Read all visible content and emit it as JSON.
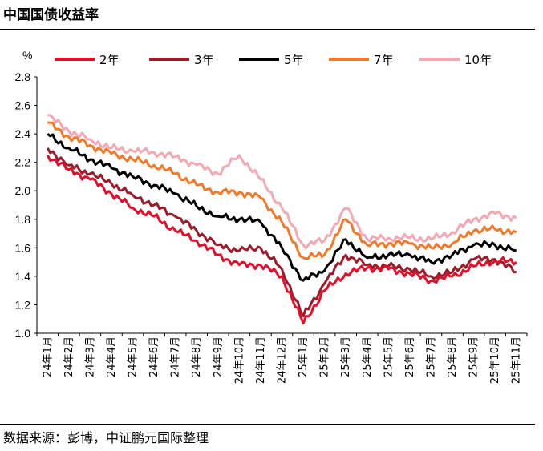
{
  "header": {
    "title": "中国国债收益率"
  },
  "footer": {
    "source": "数据来源：彭博，中证鹏元国际整理"
  },
  "chart_data": {
    "type": "line",
    "title": "中国国债收益率",
    "ylabel": "%",
    "ylim": [
      1.0,
      2.8
    ],
    "yticks": [
      "1.0",
      "1.2",
      "1.4",
      "1.6",
      "1.8",
      "2.0",
      "2.2",
      "2.4",
      "2.6",
      "2.8"
    ],
    "categories": [
      "24年1月",
      "24年2月",
      "24年3月",
      "24年4月",
      "24年5月",
      "24年6月",
      "24年7月",
      "24年8月",
      "24年9月",
      "24年10月",
      "24年11月",
      "24年12月",
      "25年1月",
      "25年2月",
      "25年3月",
      "25年4月",
      "25年5月",
      "25年6月",
      "25年7月",
      "25年8月",
      "25年9月",
      "25年10月",
      "25年11月"
    ],
    "legend_position": "top",
    "series": [
      {
        "name": "2年",
        "color": "#e0102a",
        "values": [
          2.25,
          2.15,
          2.08,
          1.98,
          1.88,
          1.82,
          1.72,
          1.65,
          1.55,
          1.48,
          1.48,
          1.4,
          1.07,
          1.3,
          1.42,
          1.46,
          1.45,
          1.42,
          1.37,
          1.4,
          1.47,
          1.51,
          1.5
        ]
      },
      {
        "name": "3年",
        "color": "#9b1b2a",
        "values": [
          2.3,
          2.18,
          2.12,
          2.05,
          1.97,
          1.9,
          1.82,
          1.72,
          1.62,
          1.58,
          1.6,
          1.45,
          1.12,
          1.35,
          1.55,
          1.48,
          1.47,
          1.45,
          1.4,
          1.43,
          1.52,
          1.52,
          1.43
        ]
      },
      {
        "name": "5年",
        "color": "#000000",
        "values": [
          2.4,
          2.3,
          2.22,
          2.16,
          2.1,
          2.04,
          1.98,
          1.89,
          1.82,
          1.8,
          1.78,
          1.6,
          1.37,
          1.44,
          1.66,
          1.53,
          1.55,
          1.55,
          1.5,
          1.55,
          1.62,
          1.62,
          1.58
        ]
      },
      {
        "name": "7年",
        "color": "#f07a2a",
        "values": [
          2.48,
          2.38,
          2.32,
          2.26,
          2.22,
          2.18,
          2.12,
          2.04,
          1.99,
          1.99,
          1.95,
          1.78,
          1.53,
          1.55,
          1.8,
          1.62,
          1.63,
          1.63,
          1.6,
          1.63,
          1.72,
          1.73,
          1.71
        ]
      },
      {
        "name": "10年",
        "color": "#f4a8b3",
        "values": [
          2.53,
          2.42,
          2.36,
          2.3,
          2.28,
          2.27,
          2.24,
          2.18,
          2.12,
          2.25,
          2.08,
          1.88,
          1.62,
          1.65,
          1.88,
          1.66,
          1.67,
          1.67,
          1.66,
          1.71,
          1.8,
          1.84,
          1.81
        ]
      }
    ]
  }
}
